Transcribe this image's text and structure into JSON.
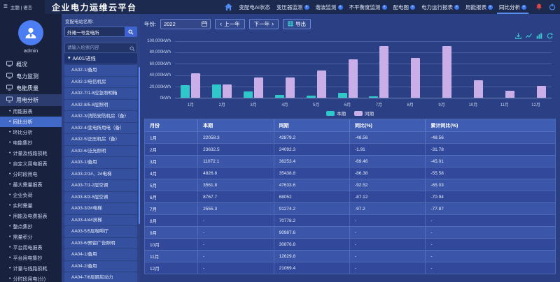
{
  "topbar": {
    "hamburger_glyph": "≡",
    "theme_language": "主题 | 语言",
    "app_title": "企业电力运维云平台",
    "tabs": [
      {
        "label": "变配电AI状态",
        "closable": false,
        "active": false
      },
      {
        "label": "变压器监测",
        "closable": true,
        "active": false
      },
      {
        "label": "谐波监测",
        "closable": true,
        "active": false
      },
      {
        "label": "不平衡度监测",
        "closable": true,
        "active": false
      },
      {
        "label": "配电图",
        "closable": true,
        "active": false
      },
      {
        "label": "电力运行报表",
        "closable": true,
        "active": false
      },
      {
        "label": "用能报表",
        "closable": true,
        "active": false
      },
      {
        "label": "同比分析",
        "closable": true,
        "active": true
      }
    ],
    "close_glyph": "×"
  },
  "user": {
    "name": "admin"
  },
  "sidebar": {
    "sections": [
      {
        "label": "概况",
        "icon": "overview-icon",
        "active": false
      },
      {
        "label": "电力监测",
        "icon": "power-monitor-icon",
        "active": false
      },
      {
        "label": "电能质量",
        "icon": "energy-quality-icon",
        "active": false
      },
      {
        "label": "用电分析",
        "icon": "usage-analysis-icon",
        "active": true
      }
    ],
    "items": [
      {
        "label": "用能报表",
        "active": false
      },
      {
        "label": "同比分析",
        "active": true
      },
      {
        "label": "环比分析",
        "active": false
      },
      {
        "label": "电能集抄",
        "active": false
      },
      {
        "label": "计量及线路损耗",
        "active": false
      },
      {
        "label": "自定义用电报表",
        "active": false
      },
      {
        "label": "分时段用电",
        "active": false
      },
      {
        "label": "最大需量报表",
        "active": false
      },
      {
        "label": "企业负荷",
        "active": false
      },
      {
        "label": "实时需量",
        "active": false
      },
      {
        "label": "用能及电费报表",
        "active": false
      },
      {
        "label": "整点集抄",
        "active": false
      },
      {
        "label": "需量积分",
        "active": false
      },
      {
        "label": "平台用电报表",
        "active": false
      },
      {
        "label": "平台用电集抄",
        "active": false
      },
      {
        "label": "计量与线路损耗",
        "active": false
      },
      {
        "label": "分时段用电(分)",
        "active": false
      }
    ],
    "bullet_glyph": "•"
  },
  "station_panel": {
    "label": "变配电站名称:",
    "station_value": "外滩一号变电所",
    "search_placeholder": "请输入检索内容",
    "tree_root": "AA01/进线",
    "caret_glyph": "▾",
    "tree_items": [
      "AA02-1/备用",
      "AA02-2/电信机房",
      "AA02-7/1-8应急照明箱",
      "AA02-8/5-8层照明",
      "AA02-3/消防安防机房（备）",
      "AA02-4/变电所用电（备）",
      "AA02-5/正压机房（备）",
      "AA02-6/泛光照明",
      "AA03-1/备用",
      "AA03-2/1#、2#电梯",
      "AA03-7/1-2层空调",
      "AA03-8/3-5层空调",
      "AA03-3/3#电梯",
      "AA03-4/4#扶梯",
      "AA03-5/5层咖啡厅",
      "AA03-6/预留广告照明",
      "AA04-1/备用",
      "AA04-2/备用",
      "AA04-7/6层厨房动力"
    ]
  },
  "toolbar": {
    "year_label": "年份:",
    "year_value": "2022",
    "prev_year": "上一年",
    "next_year": "下一年",
    "prev_chevron": "‹",
    "next_chevron": "›",
    "export_label": "导出"
  },
  "chart_data": {
    "type": "bar",
    "title": "",
    "categories": [
      "1月",
      "2月",
      "3月",
      "4月",
      "5月",
      "6月",
      "7月",
      "8月",
      "9月",
      "10月",
      "11月",
      "12月"
    ],
    "series": [
      {
        "name": "本期",
        "color": "#2fc7c9",
        "values": [
          22058.3,
          23632.5,
          11072.1,
          4826.8,
          3561.8,
          8767.7,
          2555.3,
          null,
          null,
          null,
          null,
          null
        ]
      },
      {
        "name": "同期",
        "color": "#c9aee8",
        "values": [
          42879.2,
          24092.3,
          36253.4,
          35438.8,
          47633.6,
          68052,
          91274.2,
          70778.2,
          90987.6,
          30876.8,
          12629.8,
          21069.4
        ]
      }
    ],
    "ylim": [
      0,
      100000
    ],
    "ytick_step": 20000,
    "y_unit": "kWh",
    "grid": true,
    "legend_position": "bottom"
  },
  "table": {
    "headers": [
      "月份",
      "本期",
      "同期",
      "同比(%)",
      "累计同比(%)"
    ],
    "rows": [
      {
        "month": "1月",
        "current": "22058.3",
        "previous": "42879.2",
        "yoy": "-48.56",
        "cumulative": "-48.56"
      },
      {
        "month": "2月",
        "current": "23632.5",
        "previous": "24092.3",
        "yoy": "-1.91",
        "cumulative": "-31.78"
      },
      {
        "month": "3月",
        "current": "11072.1",
        "previous": "36253.4",
        "yoy": "-69.46",
        "cumulative": "-45.01"
      },
      {
        "month": "4月",
        "current": "4826.8",
        "previous": "35438.8",
        "yoy": "-86.38",
        "cumulative": "-55.58"
      },
      {
        "month": "5月",
        "current": "3561.8",
        "previous": "47633.6",
        "yoy": "-92.52",
        "cumulative": "-65.03"
      },
      {
        "month": "6月",
        "current": "8767.7",
        "previous": "68052",
        "yoy": "-87.12",
        "cumulative": "-70.94"
      },
      {
        "month": "7月",
        "current": "2555.3",
        "previous": "91274.2",
        "yoy": "-97.2",
        "cumulative": "-77.87"
      },
      {
        "month": "8月",
        "current": "-",
        "previous": "70778.2",
        "yoy": "-",
        "cumulative": "-"
      },
      {
        "month": "9月",
        "current": "-",
        "previous": "90987.6",
        "yoy": "-",
        "cumulative": "-"
      },
      {
        "month": "10月",
        "current": "-",
        "previous": "30876.8",
        "yoy": "-",
        "cumulative": "-"
      },
      {
        "month": "11月",
        "current": "-",
        "previous": "12629.8",
        "yoy": "-",
        "cumulative": "-"
      },
      {
        "month": "12月",
        "current": "-",
        "previous": "21069.4",
        "yoy": "-",
        "cumulative": "-"
      }
    ]
  },
  "icons": [
    "hamburger-icon",
    "home-icon",
    "tab-close-icon",
    "bell-icon",
    "power-icon",
    "avatar-icon",
    "overview-icon",
    "power-monitor-icon",
    "energy-quality-icon",
    "usage-analysis-icon",
    "search-icon",
    "filter-search-icon",
    "calendar-icon",
    "export-icon",
    "download-icon",
    "line-chart-icon",
    "bar-chart-icon",
    "refresh-icon"
  ]
}
